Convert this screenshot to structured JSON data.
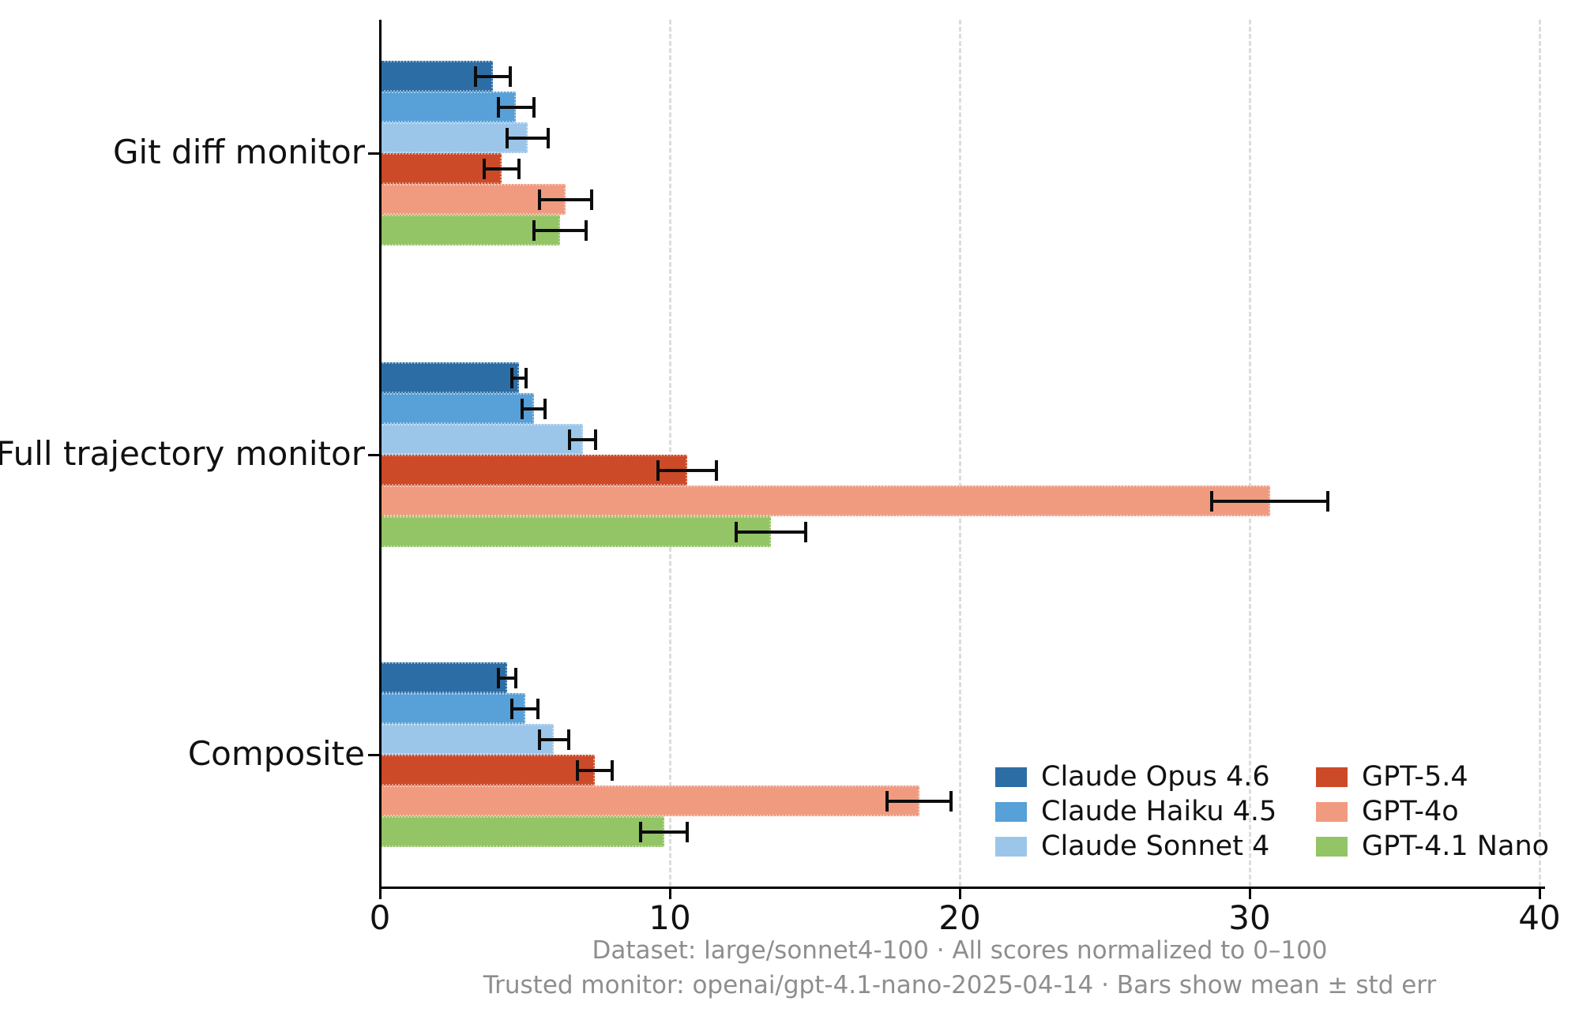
{
  "figure": {
    "title": "",
    "footnote_line1": "Dataset: large/sonnet4-100 · All scores normalized to 0–100",
    "footnote_line2": "Trusted monitor: openai/gpt-4.1-nano-2025-04-14 · Bars show mean ± std err"
  },
  "chart_data": {
    "type": "bar",
    "orientation": "horizontal",
    "title": "",
    "xlabel": "",
    "ylabel": "",
    "xlim": [
      0,
      40
    ],
    "xticks": [
      0,
      10,
      20,
      30,
      40
    ],
    "grid": "vertical dashed gridlines at 10, 20, 30, 40",
    "legend_position": "lower right inside plot, two columns, no frame",
    "error_bars": "mean ± std err",
    "categories": [
      "Git diff monitor",
      "Full trajectory monitor",
      "Composite"
    ],
    "series": [
      {
        "name": "Claude Opus 4.6",
        "color": "#2d6da5",
        "values": [
          3.9,
          4.8,
          4.4
        ],
        "std_err": [
          0.6,
          0.25,
          0.3
        ]
      },
      {
        "name": "Claude Haiku 4.5",
        "color": "#57a0d8",
        "values": [
          4.7,
          5.3,
          5.0
        ],
        "std_err": [
          0.6,
          0.4,
          0.45
        ]
      },
      {
        "name": "Claude Sonnet 4",
        "color": "#9cc6e9",
        "values": [
          5.1,
          7.0,
          6.0
        ],
        "std_err": [
          0.7,
          0.45,
          0.5
        ]
      },
      {
        "name": "GPT-5.4",
        "color": "#cc4a28",
        "values": [
          4.2,
          10.6,
          7.4
        ],
        "std_err": [
          0.6,
          1.0,
          0.6
        ]
      },
      {
        "name": "GPT-4o",
        "color": "#f09b80",
        "values": [
          6.4,
          30.7,
          18.6
        ],
        "std_err": [
          0.9,
          2.0,
          1.1
        ]
      },
      {
        "name": "GPT-4.1 Nano",
        "color": "#93c465",
        "values": [
          6.2,
          13.5,
          9.8
        ],
        "std_err": [
          0.9,
          1.2,
          0.8
        ]
      }
    ],
    "colors": {
      "axis": "#000000",
      "grid": "#dcdcdc",
      "tick_label": "#111111",
      "footnote": "#8e8e8e",
      "background": "#ffffff"
    }
  }
}
